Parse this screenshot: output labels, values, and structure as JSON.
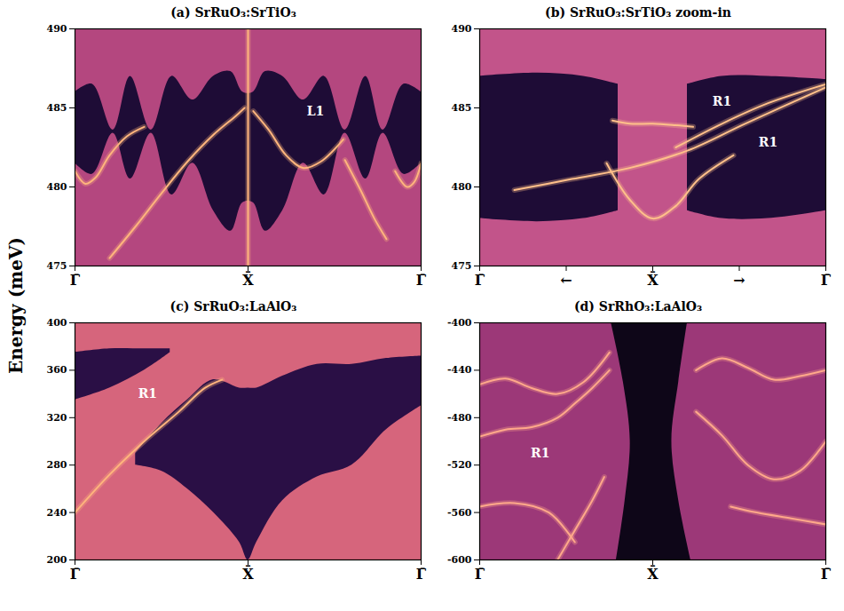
{
  "ylabel": "Energy (meV)",
  "chart_data": [
    {
      "type": "line",
      "title": "(a) SrRuO₃:SrTiO₃",
      "xlim": [
        0,
        2
      ],
      "xticks": [
        {
          "value": 0,
          "label": "Γ̄"
        },
        {
          "value": 1,
          "label": "X̄"
        },
        {
          "value": 2,
          "label": "Γ̄"
        }
      ],
      "ylim": [
        475,
        490
      ],
      "yticks": [
        475,
        480,
        485,
        490
      ],
      "series": [
        {
          "type": "area",
          "color": "#1e0c36",
          "x": [
            0,
            0.1,
            0.22,
            0.32,
            0.44,
            0.56,
            0.68,
            0.8,
            0.9,
            0.97,
            1.03,
            1.1,
            1.2,
            1.32,
            1.44,
            1.56,
            1.68,
            1.78,
            1.9,
            2
          ],
          "lower": [
            481.5,
            480.8,
            483.4,
            480.5,
            483.4,
            479.5,
            481.5,
            478.5,
            477.2,
            479,
            479,
            477.2,
            478.5,
            481.5,
            479.5,
            483.4,
            480.5,
            483.4,
            480.8,
            481.5
          ],
          "upper": [
            486,
            486.5,
            483.6,
            487,
            483.6,
            487,
            485.5,
            487,
            487.3,
            486,
            486,
            487.3,
            487,
            485.5,
            487,
            483.6,
            487,
            483.6,
            486.5,
            486
          ]
        },
        {
          "color": "#ffb57d",
          "x": [
            0,
            0.06,
            0.12,
            0.2,
            0.3,
            0.4
          ],
          "values": [
            481.0,
            480.2,
            480.6,
            482.0,
            483.2,
            483.8
          ]
        },
        {
          "color": "#ffb57d",
          "x": [
            0.2,
            0.35,
            0.5,
            0.65,
            0.8,
            0.93,
            0.98
          ],
          "values": [
            475.5,
            477.5,
            479.6,
            481.6,
            483.3,
            484.5,
            485.0
          ]
        },
        {
          "color": "#ffb57d",
          "x": [
            1.03,
            1.12,
            1.22,
            1.32,
            1.42,
            1.55
          ],
          "values": [
            484.8,
            483.6,
            482.0,
            481.2,
            481.6,
            483.0
          ]
        },
        {
          "color": "#ffb57d",
          "x": [
            1.56,
            1.65,
            1.73,
            1.8
          ],
          "values": [
            481.7,
            479.8,
            478.0,
            476.7
          ]
        },
        {
          "color": "#ffb57d",
          "x": [
            1.85,
            1.92,
            1.96,
            2
          ],
          "values": [
            481.0,
            480.0,
            480.3,
            481.5
          ]
        },
        {
          "color": "#ffb57d",
          "x": [
            1,
            1
          ],
          "values": [
            475,
            490
          ]
        }
      ],
      "annotations": [
        {
          "text": "L1",
          "x": 1.39,
          "y": 484.8
        }
      ]
    },
    {
      "type": "line",
      "title": "(b) SrRuO₃:SrTiO₃ zoom-in",
      "xlim": [
        0.85,
        1.15
      ],
      "xticks": [
        {
          "value": 0.85,
          "label": "Γ̄"
        },
        {
          "value": 0.925,
          "label": "←"
        },
        {
          "value": 1,
          "label": "X̄"
        },
        {
          "value": 1.075,
          "label": "→"
        },
        {
          "value": 1.15,
          "label": "Γ̄"
        }
      ],
      "ylim": [
        475,
        490
      ],
      "yticks": [
        475,
        480,
        485,
        490
      ],
      "series": [
        {
          "type": "area",
          "color": "#1e0c36",
          "x": [
            0.85,
            0.9,
            0.94,
            0.97
          ],
          "lower": [
            478,
            477.8,
            478,
            478.5
          ],
          "upper": [
            487,
            487.2,
            487,
            486.5
          ]
        },
        {
          "type": "area",
          "color": "#1e0c36",
          "x": [
            1.03,
            1.06,
            1.1,
            1.15
          ],
          "lower": [
            478.5,
            478,
            478,
            478.5
          ],
          "upper": [
            486.5,
            487,
            487,
            486.8
          ]
        },
        {
          "color": "#ffc08a",
          "x": [
            0.965,
            0.98,
            1.0,
            1.02,
            1.035
          ],
          "values": [
            484.2,
            484.0,
            484.0,
            483.9,
            483.8
          ]
        },
        {
          "color": "#ffc08a",
          "x": [
            0.96,
            0.98,
            1.0,
            1.02,
            1.04,
            1.07
          ],
          "values": [
            481.5,
            479.2,
            478.0,
            478.8,
            480.5,
            482.0
          ]
        },
        {
          "color": "#ffc08a",
          "x": [
            0.88,
            0.93,
            0.98,
            1.03,
            1.08,
            1.15
          ],
          "values": [
            479.8,
            480.5,
            481.2,
            482.3,
            484.0,
            486.3
          ]
        },
        {
          "color": "#ffc08a",
          "x": [
            1.02,
            1.06,
            1.1,
            1.15
          ],
          "values": [
            482.5,
            484.0,
            485.3,
            486.5
          ]
        }
      ],
      "annotations": [
        {
          "text": "R1",
          "x": 1.06,
          "y": 485.4
        },
        {
          "text": "R1",
          "x": 1.1,
          "y": 482.8
        }
      ]
    },
    {
      "type": "line",
      "title": "(c) SrRuO₃:LaAlO₃",
      "xlim": [
        0,
        2
      ],
      "xticks": [
        {
          "value": 0,
          "label": "Γ̄"
        },
        {
          "value": 1,
          "label": "X̄"
        },
        {
          "value": 2,
          "label": "Γ̄"
        }
      ],
      "ylim": [
        200,
        400
      ],
      "yticks": [
        200,
        240,
        280,
        320,
        360,
        400
      ],
      "series": [
        {
          "type": "area",
          "color": "#2a0f45",
          "x": [
            0,
            0.2,
            0.4,
            0.55
          ],
          "lower": [
            335,
            345,
            360,
            375
          ],
          "upper": [
            375,
            378,
            378,
            378
          ]
        },
        {
          "type": "area",
          "color": "#2a0f45",
          "x": [
            0.35,
            0.5,
            0.65,
            0.8,
            0.95,
            1.0,
            1.05,
            1.2,
            1.4,
            1.6,
            1.8,
            2
          ],
          "lower": [
            280,
            275,
            260,
            240,
            215,
            200,
            215,
            250,
            270,
            280,
            310,
            330
          ],
          "upper": [
            290,
            315,
            335,
            352,
            345,
            345,
            345,
            355,
            365,
            365,
            370,
            372
          ]
        },
        {
          "color": "#ffb57d",
          "x": [
            0,
            0.2,
            0.4,
            0.6,
            0.75,
            0.85
          ],
          "values": [
            240,
            272,
            300,
            325,
            345,
            352
          ]
        }
      ],
      "annotations": [
        {
          "text": "R1",
          "x": 0.42,
          "y": 340
        }
      ]
    },
    {
      "type": "line",
      "title": "(d) SrRhO₃:LaAlO₃",
      "xlim": [
        0,
        2
      ],
      "xticks": [
        {
          "value": 0,
          "label": "Γ̄"
        },
        {
          "value": 1,
          "label": "X̄"
        },
        {
          "value": 2,
          "label": "Γ̄"
        }
      ],
      "ylim": [
        -600,
        -400
      ],
      "yticks": [
        -600,
        -560,
        -520,
        -480,
        -440,
        -400
      ],
      "series": [
        {
          "type": "area",
          "orientation": "horizontal",
          "color": "#0e0618",
          "y": [
            -400,
            -450,
            -500,
            -550,
            -600
          ],
          "lower": [
            0.76,
            0.83,
            0.87,
            0.84,
            0.79
          ],
          "upper": [
            1.2,
            1.15,
            1.11,
            1.15,
            1.22
          ]
        },
        {
          "color": "#ffa98a",
          "x": [
            0,
            0.15,
            0.3,
            0.45,
            0.55,
            0.65,
            0.75
          ],
          "values": [
            -496,
            -490,
            -488,
            -480,
            -468,
            -455,
            -440
          ]
        },
        {
          "color": "#ffa98a",
          "x": [
            0,
            0.15,
            0.3,
            0.45,
            0.6,
            0.75
          ],
          "values": [
            -452,
            -447,
            -455,
            -460,
            -450,
            -425
          ]
        },
        {
          "color": "#ffa98a",
          "x": [
            0.45,
            0.55,
            0.65,
            0.72
          ],
          "values": [
            -600,
            -575,
            -550,
            -530
          ]
        },
        {
          "color": "#ffa98a",
          "x": [
            1.25,
            1.4,
            1.55,
            1.7,
            1.85,
            2
          ],
          "values": [
            -440,
            -430,
            -438,
            -448,
            -445,
            -440
          ]
        },
        {
          "color": "#ffa98a",
          "x": [
            1.25,
            1.4,
            1.55,
            1.7,
            1.85,
            2
          ],
          "values": [
            -475,
            -495,
            -520,
            -532,
            -525,
            -500
          ]
        },
        {
          "color": "#ffa98a",
          "x": [
            0,
            0.2,
            0.4,
            0.55
          ],
          "values": [
            -555,
            -552,
            -560,
            -585
          ]
        },
        {
          "color": "#ffa98a",
          "x": [
            1.45,
            1.6,
            1.8,
            2
          ],
          "values": [
            -555,
            -560,
            -565,
            -570
          ]
        }
      ],
      "annotations": [
        {
          "text": "R1",
          "x": 0.35,
          "y": -510
        }
      ]
    }
  ]
}
